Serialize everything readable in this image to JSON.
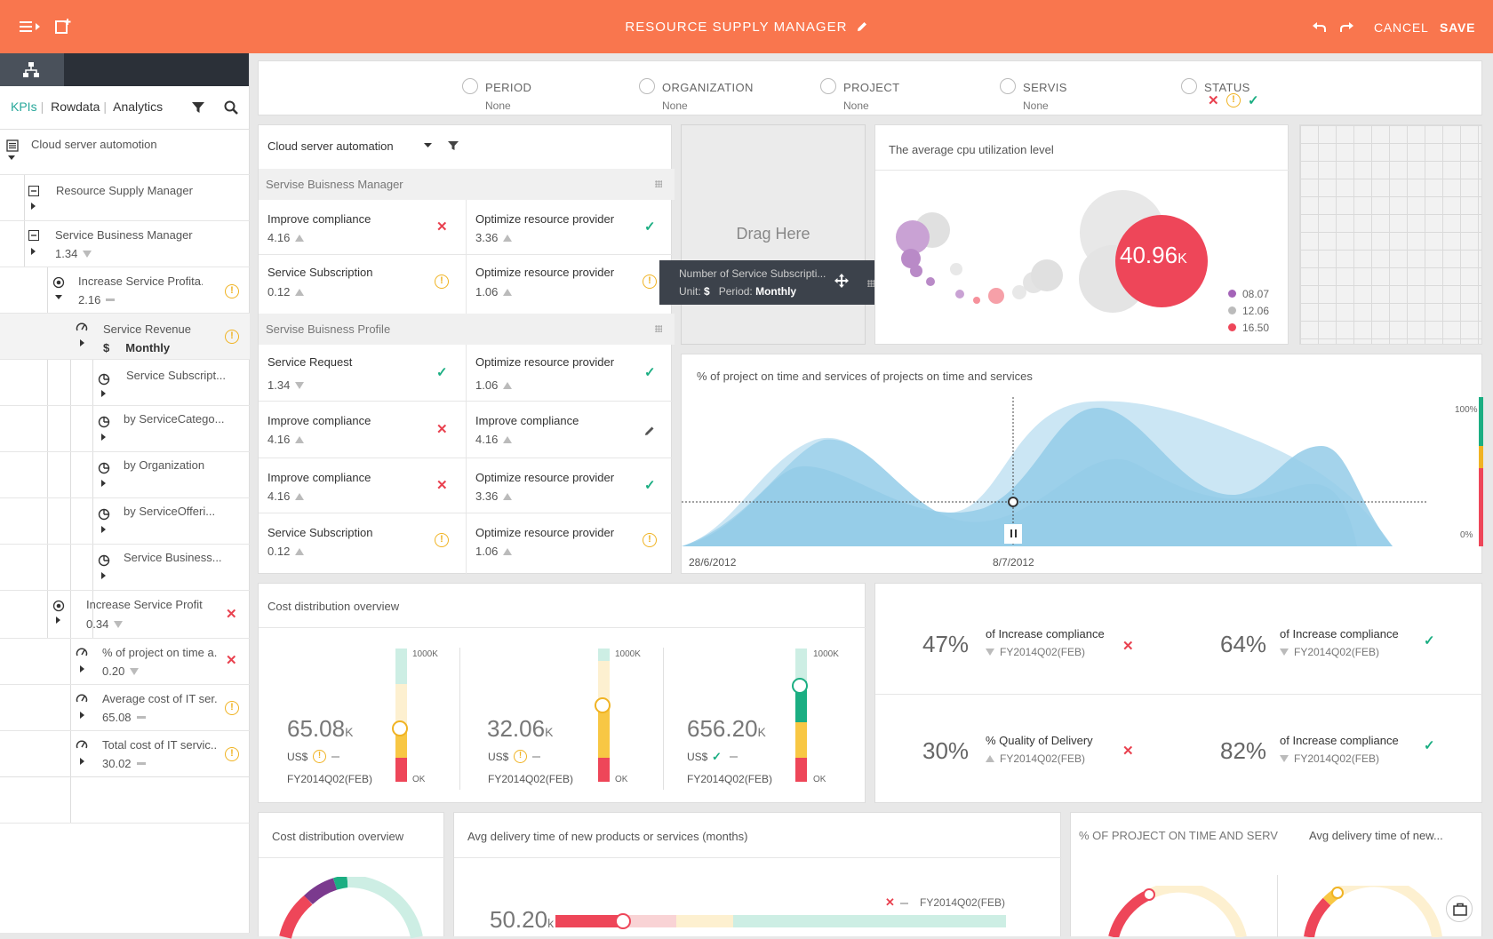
{
  "header": {
    "title": "RESOURCE SUPPLY MANAGER",
    "cancel_label": "CANCEL",
    "save_label": "SAVE",
    "accent": "#f9764e"
  },
  "sidebar": {
    "nav": [
      "KPIs",
      "Rowdata",
      "Analytics"
    ],
    "tree": [
      {
        "label": "Cloud server automotion",
        "value": ""
      },
      {
        "label": "Resource Supply Manager",
        "value": ""
      },
      {
        "label": "Service Business Manager",
        "value": "1.34"
      },
      {
        "label": "Increase Service Profita...",
        "value": "2.16"
      },
      {
        "label": "Service Revenue",
        "value": "Monthly",
        "unit": "$"
      },
      {
        "label": "Service Subscript...",
        "value": ""
      },
      {
        "label": "by ServiceCatego...",
        "value": ""
      },
      {
        "label": "by Organization",
        "value": ""
      },
      {
        "label": "by ServiceOfferi...",
        "value": ""
      },
      {
        "label": "Service Business...",
        "value": ""
      },
      {
        "label": "Increase Service Profit",
        "value": "0.34"
      },
      {
        "label": "% of project on time a...",
        "value": "0.20"
      },
      {
        "label": "Average cost of IT ser...",
        "value": "65.08"
      },
      {
        "label": "Total cost of IT servic...",
        "value": "30.02"
      }
    ]
  },
  "filters": [
    {
      "label": "PERIOD",
      "value": "None"
    },
    {
      "label": "ORGANIZATION",
      "value": "None"
    },
    {
      "label": "PROJECT",
      "value": "None"
    },
    {
      "label": "SERVIS",
      "value": "None"
    },
    {
      "label": "STATUS",
      "value": ""
    }
  ],
  "kpi_panel": {
    "select": "Cloud server automation",
    "sections": [
      {
        "title": "Servise Buisness Manager"
      },
      {
        "title": "Servise Buisness Profile"
      }
    ],
    "cells": [
      {
        "name": "Improve compliance",
        "value": "4.16"
      },
      {
        "name": "Optimize resource provider",
        "value": "3.36"
      },
      {
        "name": "Service Subscription",
        "value": "0.12"
      },
      {
        "name": "Optimize resource provider",
        "value": "1.06"
      },
      {
        "name": "Service Request",
        "value": "1.34"
      },
      {
        "name": "Optimize resource provider",
        "value": "1.06"
      },
      {
        "name": "Improve compliance",
        "value": "4.16"
      },
      {
        "name": "Improve compliance",
        "value": "4.16"
      },
      {
        "name": "Improve compliance",
        "value": "4.16"
      },
      {
        "name": "Optimize resource provider",
        "value": "3.36"
      },
      {
        "name": "Service Subscription",
        "value": "0.12"
      },
      {
        "name": "Optimize resource provider",
        "value": "1.06"
      }
    ]
  },
  "drag_here": "Drag Here",
  "tooltip": {
    "title": "Number of Service Subscripti...",
    "unit_label": "Unit:",
    "unit": "$",
    "period_label": "Period:",
    "period": "Monthly"
  },
  "bubble_chart": {
    "title": "The average cpu utilization level",
    "big_value": "40.96",
    "big_unit": "K",
    "legend": [
      {
        "label": "08.07",
        "color": "#a463b8"
      },
      {
        "label": "12.06",
        "color": "#bbbbbb"
      },
      {
        "label": "16.50",
        "color": "#ee4659"
      }
    ]
  },
  "area_chart": {
    "title": "% of project on time and services of projects on time and services",
    "x_start": "28/6/2012",
    "x_mid": "8/7/2012",
    "y_top": "100%",
    "y_bottom": "0%"
  },
  "cost_panel": {
    "title": "Cost distribution overview",
    "items": [
      {
        "value": "65.08",
        "unit": "K",
        "currency": "US$",
        "period": "FY2014Q02(FEB)",
        "max": "1000K",
        "min": "OK"
      },
      {
        "value": "32.06",
        "unit": "K",
        "currency": "US$",
        "period": "FY2014Q02(FEB)",
        "max": "1000K",
        "min": "OK"
      },
      {
        "value": "656.20",
        "unit": "K",
        "currency": "US$",
        "period": "FY2014Q02(FEB)",
        "max": "1000K",
        "min": "OK"
      }
    ]
  },
  "stats": [
    {
      "pct": "47%",
      "label": "of Increase compliance",
      "period": "FY2014Q02(FEB)"
    },
    {
      "pct": "64%",
      "label": "of Increase compliance",
      "period": "FY2014Q02(FEB)"
    },
    {
      "pct": "30%",
      "label": "% Quality of Delivery",
      "period": "FY2014Q02(FEB)"
    },
    {
      "pct": "82%",
      "label": "of Increase compliance",
      "period": "FY2014Q02(FEB)"
    }
  ],
  "bottom": {
    "cost_title": "Cost distribution overview",
    "delivery_title": "Avg delivery time of new products or services (months)",
    "delivery_value": "50.20",
    "delivery_unit": "k",
    "delivery_period": "FY2014Q02(FEB)",
    "right_title_1": "% OF PROJECT ON TIME AND SERVIC...",
    "right_title_2": "Avg delivery time of new..."
  }
}
